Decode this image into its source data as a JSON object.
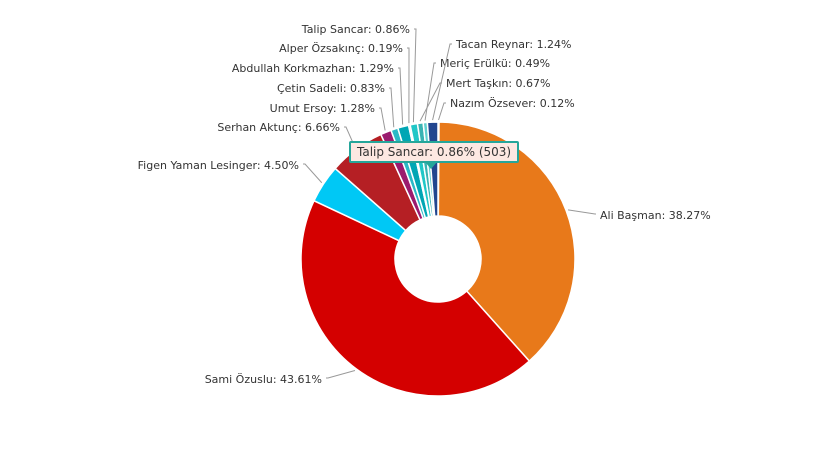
{
  "chart_data": {
    "type": "pie",
    "donut": true,
    "legend": "none",
    "slices": [
      {
        "label": "Ali Başman",
        "percent": 38.27,
        "color": "#e8791a"
      },
      {
        "label": "Sami Özuslu",
        "percent": 43.61,
        "color": "#d40000"
      },
      {
        "label": "Figen Yaman Lesinger",
        "percent": 4.5,
        "color": "#00c8f5"
      },
      {
        "label": "Serhan Aktunç",
        "percent": 6.66,
        "color": "#b51f24"
      },
      {
        "label": "Umut Ersoy",
        "percent": 1.28,
        "color": "#9b1b6e"
      },
      {
        "label": "Çetin Sadeli",
        "percent": 0.83,
        "color": "#2ab9c6"
      },
      {
        "label": "Abdullah Korkmazhan",
        "percent": 1.29,
        "color": "#00a6b4"
      },
      {
        "label": "Alper Özsakınç",
        "percent": 0.19,
        "color": "#7fd6d6"
      },
      {
        "label": "Talip Sancar",
        "percent": 0.86,
        "color": "#20c7c7"
      },
      {
        "label": "Nazım Özsever",
        "percent": 0.12,
        "color": "#5a8fd6"
      },
      {
        "label": "Mert Taşkın",
        "percent": 0.67,
        "color": "#39b3b3"
      },
      {
        "label": "Meriç Erülkü",
        "percent": 0.49,
        "color": "#60d0d0"
      },
      {
        "label": "Tacan Reynar",
        "percent": 1.24,
        "color": "#22468f"
      }
    ],
    "tooltip": {
      "label": "Talip Sancar",
      "percent": 0.86,
      "votes": 503,
      "text": "Talip Sancar: 0.86% (503)"
    }
  }
}
